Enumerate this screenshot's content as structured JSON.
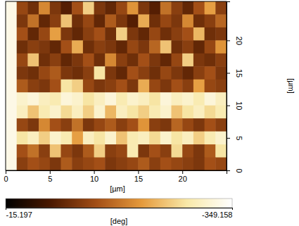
{
  "chart_data": {
    "type": "heatmap",
    "x_label": "[µm]",
    "y_label": "[µm]",
    "xlim": [
      0,
      25
    ],
    "ylim": [
      0,
      26
    ],
    "xticks": [
      0,
      5,
      10,
      15,
      20
    ],
    "yticks": [
      0,
      5,
      10,
      15,
      20
    ],
    "tick_labels": true,
    "x": [
      0.625,
      1.875,
      3.125,
      4.375,
      5.625,
      6.875,
      8.125,
      9.375,
      10.625,
      11.875,
      13.125,
      14.375,
      15.625,
      16.875,
      18.125,
      19.375,
      20.625,
      21.875,
      23.125,
      24.375
    ],
    "y": [
      25,
      23,
      21,
      19,
      17,
      15,
      13,
      11,
      9,
      7,
      5,
      3,
      1
    ],
    "z": [
      [
        -330,
        -140,
        -110,
        -200,
        -120,
        -90,
        -150,
        -260,
        -120,
        -100,
        -140,
        -210,
        -120,
        -90,
        -180,
        -130,
        -100,
        -150,
        -220,
        -130
      ],
      [
        -330,
        -120,
        -180,
        -100,
        -130,
        -250,
        -110,
        -140,
        -100,
        -160,
        -120,
        -90,
        -230,
        -110,
        -140,
        -120,
        -200,
        -110,
        -130,
        -170
      ],
      [
        -330,
        -150,
        -100,
        -140,
        -220,
        -120,
        -100,
        -130,
        -150,
        -110,
        -260,
        -120,
        -100,
        -140,
        -110,
        -130,
        -150,
        -240,
        -110,
        -120
      ],
      [
        -330,
        -110,
        -130,
        -120,
        -100,
        -150,
        -230,
        -110,
        -130,
        -120,
        -100,
        -140,
        -120,
        -170,
        -250,
        -110,
        -130,
        -100,
        -140,
        -210
      ],
      [
        -330,
        -140,
        -250,
        -110,
        -130,
        -100,
        -120,
        -150,
        -110,
        -200,
        -130,
        -110,
        -150,
        -120,
        -100,
        -140,
        -260,
        -120,
        -110,
        -130
      ],
      [
        -330,
        -120,
        -110,
        -140,
        -160,
        -120,
        -110,
        -130,
        -280,
        -120,
        -100,
        -150,
        -130,
        -110,
        -140,
        -120,
        -100,
        -130,
        -150,
        -120
      ],
      [
        -330,
        -160,
        -130,
        -120,
        -150,
        -280,
        -260,
        -140,
        -120,
        -130,
        -150,
        -120,
        -230,
        -140,
        -120,
        -150,
        -130,
        -220,
        -140,
        -130
      ],
      [
        -330,
        -310,
        -320,
        -300,
        -290,
        -320,
        -310,
        -280,
        -300,
        -320,
        -290,
        -310,
        -300,
        -280,
        -320,
        -300,
        -310,
        -290,
        -320,
        -300
      ],
      [
        -330,
        -300,
        -250,
        -290,
        -310,
        -270,
        -300,
        -260,
        -310,
        -240,
        -300,
        -280,
        -260,
        -290,
        -310,
        -250,
        -280,
        -300,
        -270,
        -290
      ],
      [
        -330,
        -140,
        -120,
        -200,
        -150,
        -130,
        -180,
        -120,
        -140,
        -160,
        -130,
        -150,
        -210,
        -130,
        -120,
        -170,
        -140,
        -120,
        -150,
        -130
      ],
      [
        -330,
        -280,
        -300,
        -260,
        -310,
        -290,
        -220,
        -300,
        -280,
        -310,
        -250,
        -290,
        -300,
        -270,
        -310,
        -280,
        -300,
        -260,
        -290,
        -310
      ],
      [
        -330,
        -150,
        -180,
        -130,
        -250,
        -140,
        -120,
        -160,
        -260,
        -130,
        -140,
        -290,
        -120,
        -150,
        -130,
        -270,
        -140,
        -120,
        -160,
        -280
      ],
      [
        -330,
        -130,
        -150,
        -140,
        -120,
        -160,
        -130,
        -140,
        -150,
        -120,
        -130,
        -140,
        -160,
        -130,
        -150,
        -140,
        -130,
        -120,
        -150,
        -140
      ]
    ],
    "colorbar": {
      "label": "[deg]",
      "range": [
        -15.197,
        -349.158
      ],
      "ticks": [
        -15.197,
        -349.158
      ]
    }
  }
}
